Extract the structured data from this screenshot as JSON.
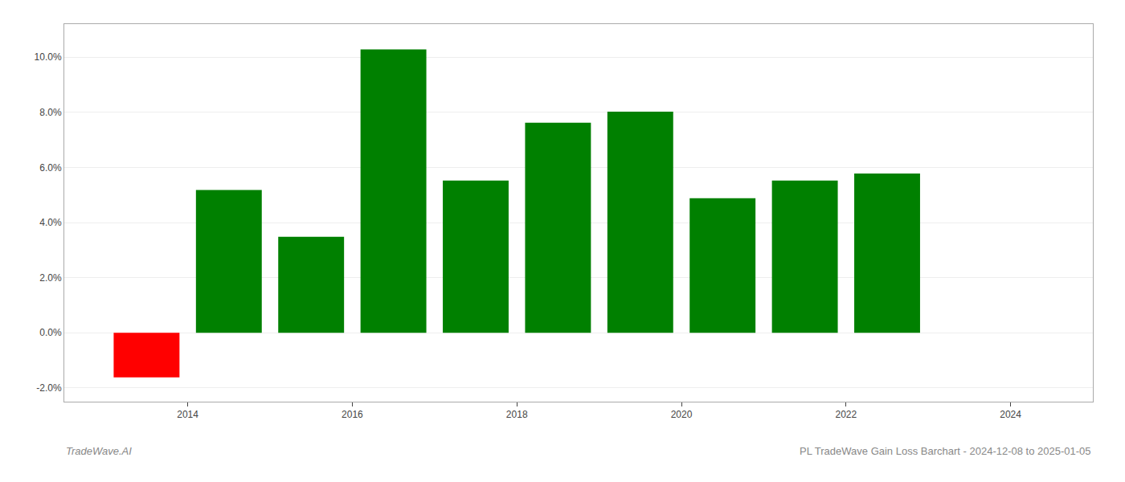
{
  "chart_data": {
    "type": "bar",
    "x": [
      2013.5,
      2014.5,
      2015.5,
      2016.5,
      2017.5,
      2018.5,
      2019.5,
      2020.5,
      2021.5,
      2022.5
    ],
    "values": [
      -1.62,
      5.18,
      3.48,
      10.28,
      5.52,
      7.62,
      8.02,
      4.88,
      5.52,
      5.78
    ],
    "colors": [
      "#ff0000",
      "#008000",
      "#008000",
      "#008000",
      "#008000",
      "#008000",
      "#008000",
      "#008000",
      "#008000",
      "#008000"
    ],
    "xlim": [
      2012.5,
      2025.0
    ],
    "xticks": [
      2014,
      2016,
      2018,
      2020,
      2022,
      2024
    ],
    "ylim": [
      -2.5,
      11.2
    ],
    "yticks": [
      {
        "value": -2.0,
        "label": "-2.0%"
      },
      {
        "value": 0.0,
        "label": "0.0%"
      },
      {
        "value": 2.0,
        "label": "2.0%"
      },
      {
        "value": 4.0,
        "label": "4.0%"
      },
      {
        "value": 6.0,
        "label": "6.0%"
      },
      {
        "value": 8.0,
        "label": "8.0%"
      },
      {
        "value": 10.0,
        "label": "10.0%"
      }
    ],
    "grid": true,
    "annotations": [
      "TradeWave.AI",
      "PL TradeWave Gain Loss Barchart - 2024-12-08 to 2025-01-05"
    ]
  }
}
